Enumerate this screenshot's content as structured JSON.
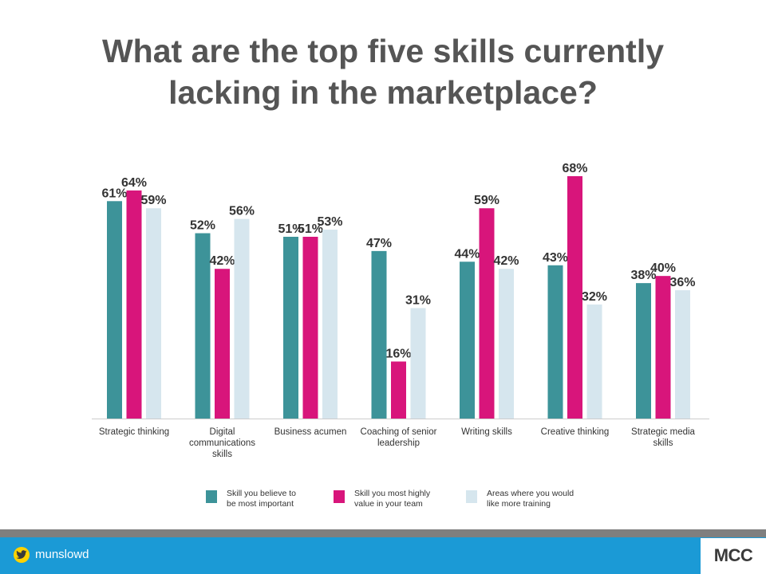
{
  "slide": {
    "title_line1": "What are the top five skills currently",
    "title_line2": "lacking in the marketplace?"
  },
  "footer": {
    "handle": "munslowd",
    "logo": "MCC",
    "twitter_icon": "twitter-bird-icon",
    "background_color": "#1b9ad6",
    "band_color": "#7f7f7f",
    "icon_color": "#ffd200"
  },
  "chart_data": {
    "type": "bar",
    "categories": [
      [
        "Strategic thinking"
      ],
      [
        "Digital",
        "communications",
        "skills"
      ],
      [
        "Business acumen"
      ],
      [
        "Coaching of senior",
        "leadership"
      ],
      [
        "Writing skills"
      ],
      [
        "Creative thinking"
      ],
      [
        "Strategic media",
        "skills"
      ]
    ],
    "series": [
      {
        "name": "Skill you believe to be most important",
        "name_lines": [
          "Skill you believe to",
          "be most important"
        ],
        "color": "#3d9399",
        "values": [
          61,
          52,
          51,
          47,
          44,
          43,
          38
        ]
      },
      {
        "name": "Skill you most highly value in your team",
        "name_lines": [
          "Skill you most highly",
          "value in your team"
        ],
        "color": "#d8157b",
        "values": [
          64,
          42,
          51,
          16,
          59,
          68,
          40
        ]
      },
      {
        "name": "Areas where you would like more training",
        "name_lines": [
          "Areas where you would",
          "like more training"
        ],
        "color": "#d6e6ee",
        "values": [
          59,
          56,
          53,
          31,
          42,
          32,
          36
        ]
      }
    ],
    "value_suffix": "%",
    "ylim": [
      0,
      68
    ],
    "legend_position": "bottom",
    "grid": false
  }
}
